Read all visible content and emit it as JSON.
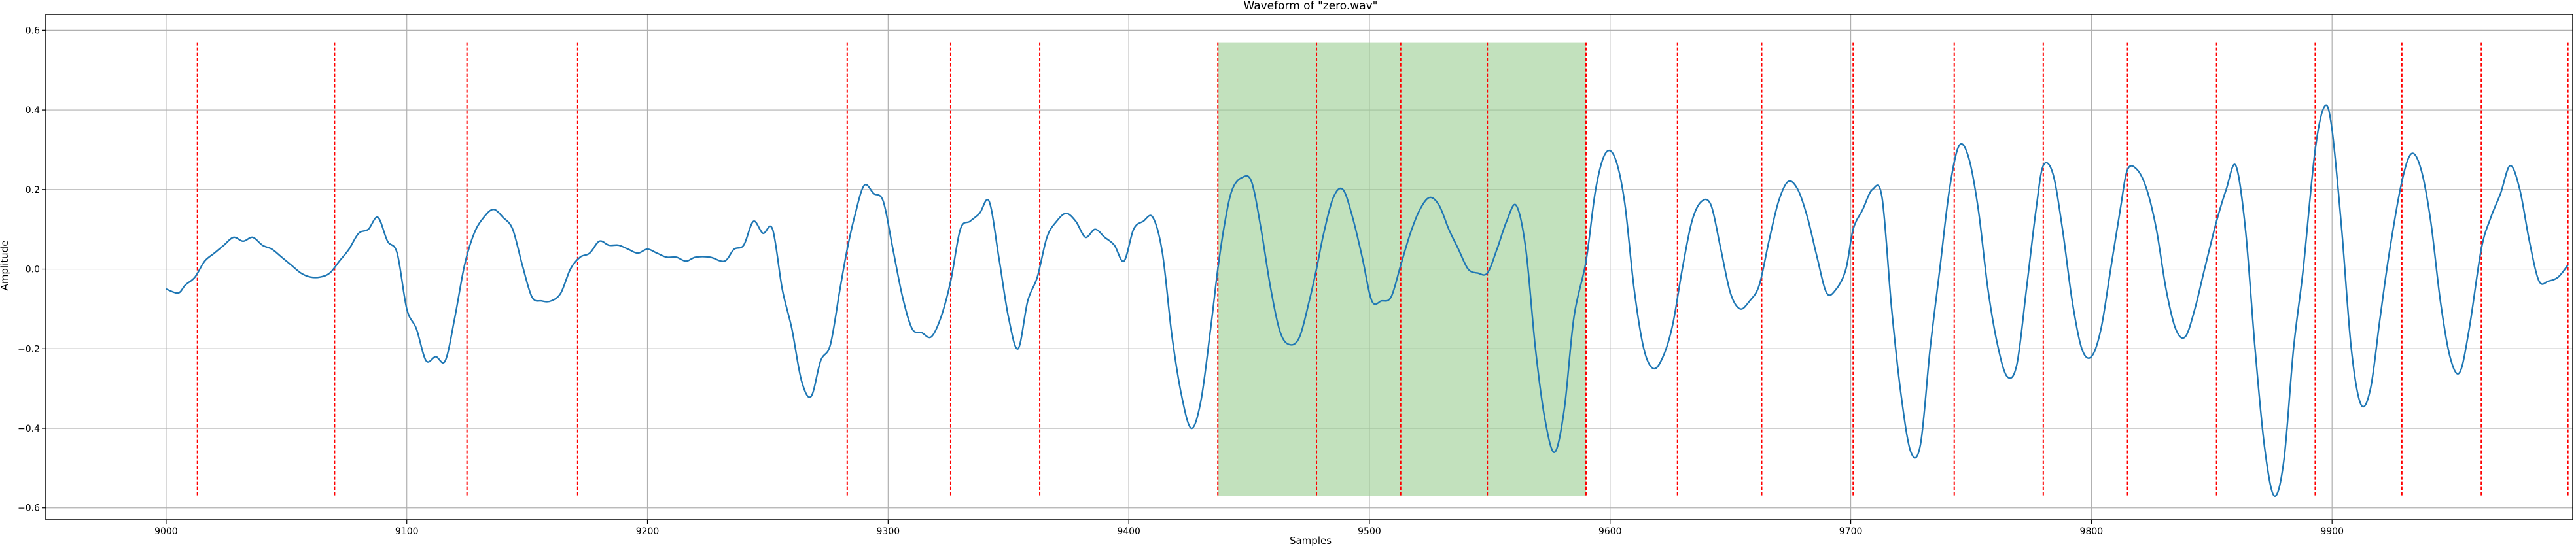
{
  "chart_data": {
    "type": "line",
    "title": "Waveform of \"zero.wav\"",
    "xlabel": "Samples",
    "ylabel": "Amplitude",
    "xlim": [
      8950,
      10000
    ],
    "ylim": [
      -0.63,
      0.64
    ],
    "grid": true,
    "x_ticks": [
      9000,
      9100,
      9200,
      9300,
      9400,
      9500,
      9600,
      9700,
      9800,
      9900
    ],
    "y_ticks": [
      -0.6,
      -0.4,
      -0.2,
      0.0,
      0.2,
      0.4,
      0.6
    ],
    "x_tick_labels": [
      "9000",
      "9100",
      "9200",
      "9300",
      "9400",
      "9500",
      "9600",
      "9700",
      "9800",
      "9900"
    ],
    "y_tick_labels": [
      "−0.6",
      "−0.4",
      "−0.2",
      "0.0",
      "0.2",
      "0.4",
      "0.6"
    ],
    "highlight_region": {
      "x_start": 9437,
      "x_end": 9590,
      "y_start": -0.57,
      "y_end": 0.57,
      "color": "#9ccf95"
    },
    "markers": {
      "color": "#ff0000",
      "y_range": [
        -0.57,
        0.57
      ],
      "x": [
        9013,
        9070,
        9125,
        9171,
        9283,
        9326,
        9363,
        9437,
        9478,
        9513,
        9549,
        9590,
        9628,
        9663,
        9701,
        9743,
        9780,
        9815,
        9852,
        9893,
        9929,
        9962,
        9998
      ]
    },
    "series": [
      {
        "color": "#1f77b4",
        "x": [
          9000,
          9005,
          9008,
          9012,
          9016,
          9020,
          9024,
          9028,
          9032,
          9036,
          9040,
          9044,
          9048,
          9052,
          9056,
          9060,
          9064,
          9068,
          9072,
          9076,
          9080,
          9084,
          9088,
          9092,
          9096,
          9100,
          9104,
          9108,
          9112,
          9116,
          9120,
          9124,
          9128,
          9132,
          9136,
          9140,
          9144,
          9148,
          9152,
          9156,
          9160,
          9164,
          9168,
          9172,
          9176,
          9180,
          9184,
          9188,
          9192,
          9196,
          9200,
          9204,
          9208,
          9212,
          9216,
          9220,
          9226,
          9232,
          9236,
          9240,
          9244,
          9248,
          9252,
          9256,
          9260,
          9264,
          9268,
          9272,
          9276,
          9280,
          9283,
          9286,
          9290,
          9294,
          9298,
          9302,
          9306,
          9310,
          9314,
          9318,
          9322,
          9326,
          9330,
          9334,
          9338,
          9342,
          9346,
          9350,
          9354,
          9358,
          9362,
          9366,
          9370,
          9374,
          9378,
          9382,
          9386,
          9390,
          9394,
          9398,
          9402,
          9406,
          9410,
          9414,
          9418,
          9422,
          9426,
          9430,
          9434,
          9437,
          9440,
          9443,
          9447,
          9451,
          9455,
          9459,
          9463,
          9467,
          9471,
          9475,
          9478,
          9481,
          9485,
          9489,
          9493,
          9497,
          9501,
          9505,
          9509,
          9513,
          9517,
          9521,
          9525,
          9529,
          9533,
          9537,
          9541,
          9545,
          9549,
          9553,
          9557,
          9561,
          9565,
          9569,
          9573,
          9577,
          9581,
          9585,
          9590,
          9594,
          9598,
          9602,
          9606,
          9610,
          9614,
          9618,
          9622,
          9626,
          9630,
          9634,
          9638,
          9642,
          9646,
          9650,
          9654,
          9658,
          9662,
          9666,
          9670,
          9674,
          9678,
          9682,
          9686,
          9690,
          9694,
          9698,
          9701,
          9705,
          9709,
          9713,
          9717,
          9721,
          9725,
          9729,
          9733,
          9737,
          9741,
          9745,
          9749,
          9753,
          9757,
          9761,
          9765,
          9769,
          9773,
          9777,
          9780,
          9784,
          9788,
          9792,
          9796,
          9800,
          9804,
          9808,
          9812,
          9815,
          9819,
          9823,
          9827,
          9831,
          9835,
          9839,
          9843,
          9847,
          9852,
          9856,
          9860,
          9864,
          9868,
          9872,
          9876,
          9880,
          9884,
          9888,
          9893,
          9897,
          9900,
          9904,
          9908,
          9912,
          9916,
          9920,
          9924,
          9929,
          9933,
          9937,
          9941,
          9945,
          9949,
          9953,
          9957,
          9962,
          9966,
          9970,
          9974,
          9978,
          9982,
          9986,
          9990,
          9994,
          9998
        ],
        "y": [
          -0.05,
          -0.06,
          -0.04,
          -0.02,
          0.02,
          0.04,
          0.06,
          0.08,
          0.07,
          0.08,
          0.06,
          0.05,
          0.03,
          0.01,
          -0.01,
          -0.02,
          -0.02,
          -0.01,
          0.02,
          0.05,
          0.09,
          0.1,
          0.13,
          0.07,
          0.04,
          -0.1,
          -0.15,
          -0.23,
          -0.22,
          -0.23,
          -0.12,
          0.01,
          0.09,
          0.13,
          0.15,
          0.13,
          0.1,
          0.01,
          -0.07,
          -0.08,
          -0.08,
          -0.06,
          0.0,
          0.03,
          0.04,
          0.07,
          0.06,
          0.06,
          0.05,
          0.04,
          0.05,
          0.04,
          0.03,
          0.03,
          0.02,
          0.03,
          0.03,
          0.02,
          0.05,
          0.06,
          0.12,
          0.09,
          0.1,
          -0.05,
          -0.15,
          -0.28,
          -0.32,
          -0.23,
          -0.19,
          -0.05,
          0.05,
          0.13,
          0.21,
          0.19,
          0.17,
          0.05,
          -0.07,
          -0.15,
          -0.16,
          -0.17,
          -0.12,
          -0.03,
          0.1,
          0.12,
          0.14,
          0.17,
          0.03,
          -0.12,
          -0.2,
          -0.08,
          -0.02,
          0.08,
          0.12,
          0.14,
          0.12,
          0.08,
          0.1,
          0.08,
          0.06,
          0.02,
          0.1,
          0.12,
          0.13,
          0.04,
          -0.17,
          -0.32,
          -0.4,
          -0.33,
          -0.15,
          0.0,
          0.12,
          0.2,
          0.23,
          0.22,
          0.1,
          -0.05,
          -0.16,
          -0.19,
          -0.17,
          -0.08,
          0.0,
          0.09,
          0.18,
          0.2,
          0.13,
          0.03,
          -0.08,
          -0.08,
          -0.07,
          0.01,
          0.09,
          0.15,
          0.18,
          0.16,
          0.1,
          0.05,
          0.0,
          -0.01,
          -0.01,
          0.05,
          0.12,
          0.16,
          0.05,
          -0.2,
          -0.38,
          -0.46,
          -0.35,
          -0.12,
          0.02,
          0.2,
          0.29,
          0.28,
          0.17,
          -0.05,
          -0.2,
          -0.25,
          -0.22,
          -0.14,
          0.0,
          0.12,
          0.17,
          0.16,
          0.05,
          -0.06,
          -0.1,
          -0.08,
          -0.04,
          0.07,
          0.17,
          0.22,
          0.2,
          0.13,
          0.03,
          -0.06,
          -0.05,
          0.0,
          0.1,
          0.15,
          0.2,
          0.18,
          -0.1,
          -0.32,
          -0.46,
          -0.44,
          -0.2,
          0.0,
          0.2,
          0.31,
          0.28,
          0.15,
          -0.05,
          -0.19,
          -0.27,
          -0.24,
          -0.05,
          0.15,
          0.26,
          0.24,
          0.1,
          -0.08,
          -0.2,
          -0.22,
          -0.15,
          0.0,
          0.15,
          0.25,
          0.25,
          0.2,
          0.1,
          -0.05,
          -0.15,
          -0.17,
          -0.1,
          0.0,
          0.12,
          0.2,
          0.26,
          0.1,
          -0.2,
          -0.45,
          -0.57,
          -0.48,
          -0.2,
          0.0,
          0.3,
          0.41,
          0.35,
          0.1,
          -0.2,
          -0.34,
          -0.3,
          -0.12,
          0.05,
          0.22,
          0.29,
          0.25,
          0.12,
          -0.08,
          -0.22,
          -0.26,
          -0.15,
          0.05,
          0.13,
          0.19,
          0.26,
          0.2,
          0.07,
          -0.03,
          -0.03,
          -0.02,
          0.01
        ]
      }
    ]
  }
}
